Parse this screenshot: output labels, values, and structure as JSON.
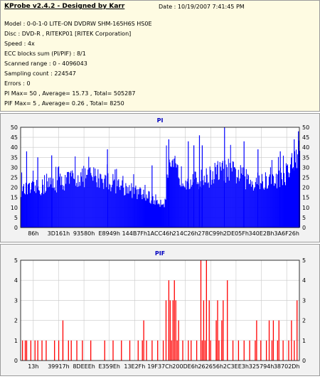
{
  "info": {
    "title": "KProbe v2.4.2 - Designed by Karr",
    "date": "Date : 10/19/2007 7:41:45 PM",
    "lines": [
      "Model : 0-0-1-0 LITE-ON DVDRW SHM-165H6S HS0E",
      "Disc : DVD-R , RITEKP01 [RITEK Corporation]",
      "Speed : 4x",
      "ECC blocks sum (PI/PIF) : 8/1",
      "Scanned range : 0 - 4096043",
      "Sampling count : 224547",
      "Errors : 0",
      "PI Max= 50 , Average= 15.73 , Total= 505287",
      "PIF Max= 5 , Average= 0.26 , Total= 8250"
    ]
  },
  "colors": {
    "plot_bg": "#ffffff",
    "series": "#0000ff",
    "series_pif": "#ff0000",
    "grid": "#c8c8c8",
    "axis_text": "#000000",
    "title": "#0000c0"
  },
  "chart_data": [
    {
      "type": "bar",
      "title": "PI",
      "ylim": [
        0,
        50
      ],
      "yticks": [
        0,
        5,
        10,
        15,
        20,
        25,
        30,
        35,
        40,
        45,
        50
      ],
      "xticks": [
        "86h",
        "3D161h",
        "93580h",
        "E8949h",
        "144B7Fh",
        "1ACC46h",
        "214C26h",
        "278C99h",
        "2DE05Fh",
        "340E2Bh",
        "3A6F26h"
      ],
      "grid": true,
      "segments": [
        {
          "x": [
            0.0,
            0.02,
            0.05,
            0.08,
            0.1,
            0.15,
            0.2,
            0.25,
            0.3,
            0.35,
            0.4,
            0.45,
            0.48,
            0.5,
            0.52
          ],
          "y": [
            20,
            20,
            21,
            22,
            23,
            25,
            27,
            28,
            26,
            23,
            20,
            17,
            15,
            14,
            14
          ]
        },
        {
          "x": [
            0.52,
            0.55,
            0.58,
            0.62,
            0.67,
            0.7,
            0.74,
            0.78,
            0.82,
            0.86,
            0.88,
            0.91,
            0.94,
            0.97,
            1.0
          ],
          "y": [
            30,
            31,
            27,
            25,
            27,
            30,
            31,
            29,
            25,
            24,
            25,
            26,
            28,
            32,
            40
          ]
        }
      ],
      "spikes": [
        {
          "x": 0.02,
          "y": 38
        },
        {
          "x": 0.06,
          "y": 35
        },
        {
          "x": 0.11,
          "y": 36
        },
        {
          "x": 0.31,
          "y": 39
        },
        {
          "x": 0.47,
          "y": 31
        },
        {
          "x": 0.53,
          "y": 44
        },
        {
          "x": 0.6,
          "y": 43
        },
        {
          "x": 0.62,
          "y": 41
        },
        {
          "x": 0.64,
          "y": 46
        },
        {
          "x": 0.65,
          "y": 41
        },
        {
          "x": 0.73,
          "y": 50
        },
        {
          "x": 0.8,
          "y": 43
        },
        {
          "x": 0.85,
          "y": 39
        },
        {
          "x": 0.93,
          "y": 38
        },
        {
          "x": 0.98,
          "y": 44
        },
        {
          "x": 0.995,
          "y": 48
        }
      ]
    },
    {
      "type": "bar",
      "title": "PIF",
      "ylim": [
        0,
        5
      ],
      "yticks": [
        0,
        1,
        2,
        3,
        4,
        5
      ],
      "xticks": [
        "13h",
        "39917h",
        "8DEEEh",
        "E359Eh",
        "13E2Fh",
        "19F37Ch",
        "200DE6h",
        "262656h",
        "2C3EE3h",
        "325794h",
        "38702Dh"
      ],
      "grid": true,
      "bars": [
        {
          "x": 0.005,
          "y": 1
        },
        {
          "x": 0.015,
          "y": 1
        },
        {
          "x": 0.02,
          "y": 1
        },
        {
          "x": 0.035,
          "y": 1
        },
        {
          "x": 0.05,
          "y": 1
        },
        {
          "x": 0.06,
          "y": 1
        },
        {
          "x": 0.075,
          "y": 1
        },
        {
          "x": 0.09,
          "y": 1
        },
        {
          "x": 0.12,
          "y": 1
        },
        {
          "x": 0.135,
          "y": 1
        },
        {
          "x": 0.15,
          "y": 1
        },
        {
          "x": 0.17,
          "y": 1
        },
        {
          "x": 0.18,
          "y": 1
        },
        {
          "x": 0.2,
          "y": 1
        },
        {
          "x": 0.22,
          "y": 1
        },
        {
          "x": 0.25,
          "y": 1
        },
        {
          "x": 0.3,
          "y": 1
        },
        {
          "x": 0.33,
          "y": 1
        },
        {
          "x": 0.36,
          "y": 1
        },
        {
          "x": 0.39,
          "y": 1
        },
        {
          "x": 0.42,
          "y": 1
        },
        {
          "x": 0.435,
          "y": 1
        },
        {
          "x": 0.45,
          "y": 1
        },
        {
          "x": 0.47,
          "y": 1
        },
        {
          "x": 0.49,
          "y": 1
        },
        {
          "x": 0.51,
          "y": 1
        },
        {
          "x": 0.53,
          "y": 1
        },
        {
          "x": 0.54,
          "y": 1
        },
        {
          "x": 0.56,
          "y": 1
        },
        {
          "x": 0.58,
          "y": 1
        },
        {
          "x": 0.6,
          "y": 1
        },
        {
          "x": 0.61,
          "y": 1
        },
        {
          "x": 0.63,
          "y": 1
        },
        {
          "x": 0.65,
          "y": 1
        },
        {
          "x": 0.66,
          "y": 1
        },
        {
          "x": 0.68,
          "y": 1
        },
        {
          "x": 0.7,
          "y": 1
        },
        {
          "x": 0.71,
          "y": 1
        },
        {
          "x": 0.72,
          "y": 1
        },
        {
          "x": 0.74,
          "y": 1
        },
        {
          "x": 0.76,
          "y": 1
        },
        {
          "x": 0.78,
          "y": 1
        },
        {
          "x": 0.8,
          "y": 1
        },
        {
          "x": 0.82,
          "y": 1
        },
        {
          "x": 0.84,
          "y": 1
        },
        {
          "x": 0.86,
          "y": 1
        },
        {
          "x": 0.88,
          "y": 1
        },
        {
          "x": 0.9,
          "y": 1
        },
        {
          "x": 0.92,
          "y": 1
        },
        {
          "x": 0.94,
          "y": 1
        },
        {
          "x": 0.96,
          "y": 1
        },
        {
          "x": 0.98,
          "y": 1
        },
        {
          "x": 0.15,
          "y": 2
        },
        {
          "x": 0.44,
          "y": 2
        },
        {
          "x": 0.565,
          "y": 2
        },
        {
          "x": 0.7,
          "y": 2
        },
        {
          "x": 0.72,
          "y": 2
        },
        {
          "x": 0.845,
          "y": 2
        },
        {
          "x": 0.89,
          "y": 2
        },
        {
          "x": 0.905,
          "y": 2
        },
        {
          "x": 0.925,
          "y": 2
        },
        {
          "x": 0.97,
          "y": 2
        },
        {
          "x": 0.52,
          "y": 3
        },
        {
          "x": 0.535,
          "y": 3
        },
        {
          "x": 0.545,
          "y": 3
        },
        {
          "x": 0.555,
          "y": 3
        },
        {
          "x": 0.655,
          "y": 3
        },
        {
          "x": 0.675,
          "y": 3
        },
        {
          "x": 0.705,
          "y": 3
        },
        {
          "x": 0.725,
          "y": 3
        },
        {
          "x": 0.99,
          "y": 3
        },
        {
          "x": 0.53,
          "y": 4
        },
        {
          "x": 0.55,
          "y": 4
        },
        {
          "x": 0.74,
          "y": 4
        },
        {
          "x": 0.645,
          "y": 5
        },
        {
          "x": 0.665,
          "y": 5
        }
      ]
    }
  ]
}
